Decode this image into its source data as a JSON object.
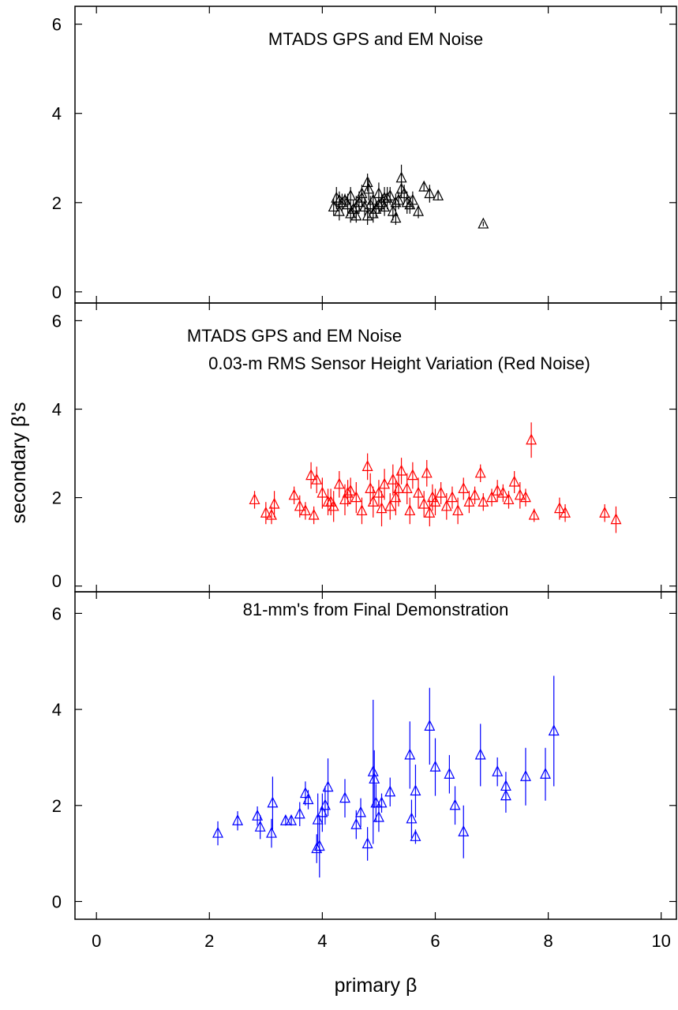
{
  "chart_data": [
    {
      "type": "scatter",
      "title": "MTADS GPS and EM Noise",
      "xlim": [
        -0.38,
        10.27
      ],
      "xticks": [
        0,
        2,
        4,
        6,
        8,
        10
      ],
      "ylim": [
        -0.25,
        6.4
      ],
      "yticks": [
        0,
        2,
        4,
        6
      ],
      "series": [
        {
          "color": "#000000",
          "x": [
            4.2,
            4.25,
            4.3,
            4.35,
            4.4,
            4.45,
            4.5,
            4.55,
            4.6,
            4.65,
            4.7,
            4.75,
            4.8,
            4.82,
            4.85,
            4.9,
            4.95,
            5.0,
            5.05,
            5.1,
            5.15,
            5.2,
            5.25,
            5.3,
            5.35,
            5.4,
            5.45,
            5.5,
            5.55,
            5.6,
            5.7,
            5.8,
            5.9,
            6.05,
            6.85,
            4.5,
            4.7,
            4.9,
            5.1,
            5.3,
            4.3,
            4.6,
            5.0,
            5.4,
            4.8
          ],
          "values": [
            1.9,
            2.1,
            1.8,
            2.0,
            2.05,
            1.95,
            2.15,
            1.85,
            1.7,
            2.0,
            2.1,
            1.9,
            2.45,
            2.3,
            1.95,
            2.05,
            1.85,
            2.2,
            2.0,
            1.9,
            2.1,
            2.15,
            1.8,
            1.65,
            2.05,
            2.55,
            2.2,
            2.0,
            1.95,
            2.05,
            1.8,
            2.35,
            2.2,
            2.15,
            1.52,
            1.75,
            2.2,
            1.75,
            2.1,
            2.0,
            2.05,
            1.9,
            1.95,
            2.3,
            1.7
          ],
          "errors": [
            0.2,
            0.25,
            0.2,
            0.2,
            0.15,
            0.25,
            0.2,
            0.2,
            0.15,
            0.25,
            0.2,
            0.2,
            0.2,
            0.25,
            0.2,
            0.2,
            0.2,
            0.25,
            0.2,
            0.2,
            0.25,
            0.2,
            0.2,
            0.15,
            0.2,
            0.3,
            0.2,
            0.25,
            0.2,
            0.2,
            0.15,
            0.1,
            0.2,
            0.1,
            0.05,
            0.2,
            0.2,
            0.2,
            0.25,
            0.2,
            0.2,
            0.25,
            0.2,
            0.2,
            0.2
          ]
        }
      ]
    },
    {
      "type": "scatter",
      "title": "MTADS GPS and EM Noise",
      "subtitle": "0.03-m RMS Sensor Height Variation (Red Noise)",
      "y_label": "secondary β's",
      "xlim": [
        -0.38,
        10.27
      ],
      "xticks": [
        0,
        2,
        4,
        6,
        8,
        10
      ],
      "ylim": [
        -0.13,
        6.4
      ],
      "yticks": [
        0,
        2,
        4,
        6
      ],
      "series": [
        {
          "color": "#ff0000",
          "x": [
            2.8,
            3.0,
            3.1,
            3.15,
            3.5,
            3.6,
            3.7,
            3.8,
            3.85,
            3.9,
            4.0,
            4.1,
            4.2,
            4.3,
            4.4,
            4.5,
            4.6,
            4.7,
            4.8,
            4.85,
            4.9,
            5.0,
            5.1,
            5.2,
            5.25,
            5.3,
            5.4,
            5.5,
            5.55,
            5.6,
            5.7,
            5.8,
            5.85,
            5.9,
            5.95,
            6.0,
            6.1,
            6.2,
            6.3,
            6.4,
            6.5,
            6.6,
            6.7,
            6.8,
            6.85,
            7.0,
            7.1,
            7.2,
            7.3,
            7.4,
            7.5,
            7.6,
            7.7,
            7.75,
            8.2,
            8.3,
            9.0,
            9.2,
            4.45,
            5.05,
            5.35,
            4.15
          ],
          "values": [
            1.95,
            1.65,
            1.6,
            1.85,
            2.05,
            1.8,
            1.7,
            2.5,
            1.6,
            2.4,
            2.1,
            1.9,
            1.8,
            2.3,
            1.95,
            2.15,
            2.0,
            1.7,
            2.7,
            2.2,
            1.9,
            2.1,
            2.3,
            1.8,
            2.4,
            2.0,
            2.6,
            2.2,
            1.7,
            2.5,
            2.1,
            1.85,
            2.55,
            1.65,
            2.0,
            1.9,
            2.1,
            1.8,
            2.0,
            1.7,
            2.2,
            1.9,
            2.05,
            2.55,
            1.9,
            2.0,
            2.15,
            2.1,
            1.95,
            2.35,
            2.05,
            2.0,
            3.3,
            1.6,
            1.75,
            1.65,
            1.65,
            1.5,
            2.1,
            1.75,
            2.2,
            1.9
          ],
          "errors": [
            0.2,
            0.25,
            0.2,
            0.3,
            0.2,
            0.25,
            0.2,
            0.3,
            0.2,
            0.3,
            0.35,
            0.3,
            0.35,
            0.3,
            0.35,
            0.3,
            0.35,
            0.3,
            0.3,
            0.35,
            0.35,
            0.3,
            0.35,
            0.3,
            0.35,
            0.4,
            0.3,
            0.35,
            0.3,
            0.3,
            0.35,
            0.3,
            0.3,
            0.3,
            0.3,
            0.3,
            0.25,
            0.3,
            0.25,
            0.3,
            0.25,
            0.25,
            0.2,
            0.2,
            0.2,
            0.2,
            0.25,
            0.2,
            0.2,
            0.25,
            0.3,
            0.2,
            0.4,
            0.15,
            0.25,
            0.2,
            0.2,
            0.3,
            0.3,
            0.4,
            0.4,
            0.3
          ]
        }
      ]
    },
    {
      "type": "scatter",
      "title": "81-mm's from Final Demonstration",
      "x_label": "primary β",
      "xlim": [
        -0.38,
        10.27
      ],
      "xticks": [
        0,
        2,
        4,
        6,
        8,
        10
      ],
      "ylim": [
        -0.37,
        6.45
      ],
      "yticks": [
        0,
        2,
        4,
        6
      ],
      "series": [
        {
          "color": "#0000ff",
          "x": [
            2.15,
            2.5,
            2.85,
            2.9,
            3.1,
            3.12,
            3.35,
            3.45,
            3.6,
            3.7,
            3.75,
            3.9,
            3.92,
            3.95,
            4.0,
            4.05,
            4.1,
            4.4,
            4.6,
            4.68,
            4.8,
            4.9,
            4.92,
            4.95,
            5.0,
            5.05,
            5.2,
            5.55,
            5.58,
            5.65,
            5.65,
            5.9,
            6.0,
            6.25,
            6.35,
            6.5,
            6.8,
            7.1,
            7.25,
            7.25,
            7.6,
            7.95,
            8.1
          ],
          "values": [
            1.42,
            1.68,
            1.78,
            1.55,
            1.42,
            2.05,
            1.68,
            1.68,
            1.82,
            2.25,
            2.12,
            1.1,
            1.7,
            1.15,
            1.85,
            2.0,
            2.38,
            2.15,
            1.6,
            1.85,
            1.2,
            2.7,
            2.55,
            2.05,
            1.75,
            2.05,
            2.28,
            3.05,
            1.72,
            2.3,
            1.35,
            3.65,
            2.8,
            2.65,
            2.0,
            1.45,
            3.05,
            2.7,
            2.4,
            2.2,
            2.6,
            2.65,
            3.55
          ],
          "errors": [
            0.25,
            0.2,
            0.2,
            0.25,
            0.3,
            0.55,
            0.1,
            0.1,
            0.25,
            0.25,
            0.2,
            0.3,
            0.55,
            0.65,
            0.4,
            0.4,
            0.6,
            0.4,
            0.3,
            0.3,
            0.35,
            1.5,
            0.6,
            0.4,
            0.3,
            0.2,
            0.3,
            0.7,
            0.4,
            0.55,
            0.15,
            0.8,
            0.6,
            0.4,
            0.4,
            0.55,
            0.65,
            0.3,
            0.3,
            0.35,
            0.6,
            0.55,
            1.15
          ]
        }
      ]
    }
  ]
}
